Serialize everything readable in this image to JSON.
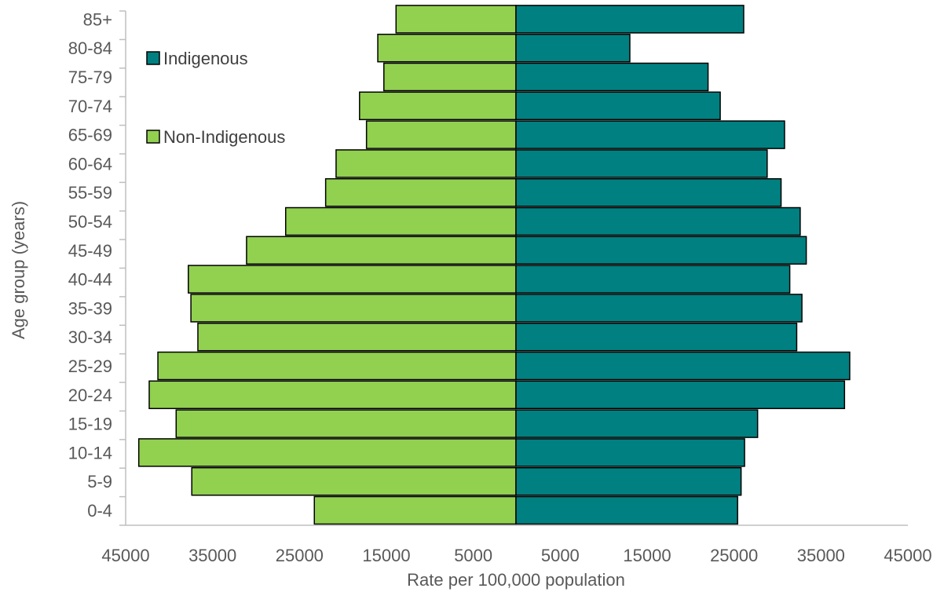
{
  "chart_data": {
    "type": "bar",
    "orientation": "horizontal-diverging",
    "xlabel": "Rate per 100,000 population",
    "ylabel": "Age group (years)",
    "categories": [
      "0-4",
      "5-9",
      "10-14",
      "15-19",
      "20-24",
      "25-29",
      "30-34",
      "35-39",
      "40-44",
      "45-49",
      "50-54",
      "55-59",
      "60-64",
      "65-69",
      "70-74",
      "75-79",
      "80-84",
      "85+"
    ],
    "x_tick_labels": [
      "45000",
      "35000",
      "25000",
      "15000",
      "5000",
      "5000",
      "15000",
      "25000",
      "35000",
      "45000"
    ],
    "xlim": [
      -45000,
      45000
    ],
    "legend_placement": "top-left",
    "grid": false,
    "series": [
      {
        "name": "Indigenous",
        "side": "right",
        "color": "#008080",
        "values": [
          25500,
          25900,
          26300,
          27800,
          37800,
          38400,
          32300,
          32900,
          31500,
          33400,
          32700,
          30500,
          28900,
          30900,
          23500,
          22100,
          13100,
          26200
        ]
      },
      {
        "name": "Non-Indigenous",
        "side": "left",
        "color": "#92D050",
        "values": [
          23200,
          37300,
          43400,
          39100,
          42200,
          41200,
          36600,
          37400,
          37700,
          31000,
          26500,
          21900,
          20700,
          17200,
          18000,
          15200,
          15900,
          13800
        ]
      }
    ]
  }
}
